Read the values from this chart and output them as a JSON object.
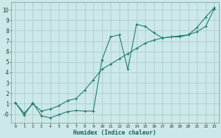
{
  "xlabel": "Humidex (Indice chaleur)",
  "background_color": "#cce8e8",
  "grid_color": "#aacccc",
  "line_color": "#1a7a6a",
  "xlim": [
    -0.5,
    23.5
  ],
  "ylim": [
    -0.8,
    10.7
  ],
  "xticks": [
    0,
    1,
    2,
    3,
    4,
    5,
    6,
    7,
    8,
    9,
    10,
    11,
    12,
    13,
    14,
    15,
    16,
    17,
    18,
    19,
    20,
    21,
    22,
    23
  ],
  "yticks": [
    0,
    1,
    2,
    3,
    4,
    5,
    6,
    7,
    8,
    9,
    10
  ],
  "ytick_labels": [
    "-0",
    "1",
    "2",
    "3",
    "4",
    "5",
    "6",
    "7",
    "8",
    "9",
    "10"
  ],
  "line1_x": [
    0,
    1,
    2,
    3,
    4,
    5,
    6,
    7,
    8,
    9,
    10,
    11,
    12,
    13,
    14,
    15,
    16,
    17,
    18,
    19,
    20,
    21,
    22,
    23
  ],
  "line1_y": [
    1.1,
    -0.1,
    1.1,
    -0.15,
    -0.35,
    -0.05,
    0.25,
    0.35,
    0.3,
    0.3,
    5.2,
    7.4,
    7.6,
    4.3,
    8.6,
    8.4,
    7.8,
    7.3,
    7.4,
    7.4,
    7.6,
    8.3,
    9.3,
    10.2
  ],
  "line2_x": [
    0,
    1,
    2,
    3,
    4,
    5,
    6,
    7,
    8,
    9,
    10,
    11,
    12,
    13,
    14,
    15,
    16,
    17,
    18,
    19,
    20,
    21,
    22,
    23
  ],
  "line2_y": [
    1.1,
    0.1,
    1.0,
    0.3,
    0.5,
    0.8,
    1.3,
    1.5,
    2.3,
    3.3,
    4.3,
    4.8,
    5.3,
    5.8,
    6.3,
    6.8,
    7.1,
    7.3,
    7.4,
    7.5,
    7.6,
    7.9,
    8.4,
    10.1
  ]
}
